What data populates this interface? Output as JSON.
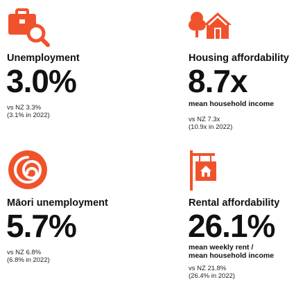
{
  "colors": {
    "accent": "#f0532c",
    "text": "#111111"
  },
  "cards": [
    {
      "icon": "briefcase-search-icon",
      "label": "Unemployment",
      "value": "3.0%",
      "subtitle": "",
      "vs": "vs NZ 3.3%",
      "prev": "(3.1% in 2022)"
    },
    {
      "icon": "house-tree-icon",
      "label": "Housing affordability",
      "value": "8.7x",
      "subtitle": "mean household income",
      "vs": "vs NZ 7.3x",
      "prev": "(10.9x in 2022)"
    },
    {
      "icon": "koru-spiral-icon",
      "label": "Māori unemployment",
      "value": "5.7%",
      "subtitle": "",
      "vs": "vs NZ 6.8%",
      "prev": "(6.8% in 2022)"
    },
    {
      "icon": "rental-sign-icon",
      "label": "Rental affordability",
      "value": "26.1%",
      "subtitle": "mean weekly rent /",
      "subtitle2": "mean household income",
      "vs": "vs NZ 21.8%",
      "prev": "(26.4% in 2022)"
    }
  ]
}
